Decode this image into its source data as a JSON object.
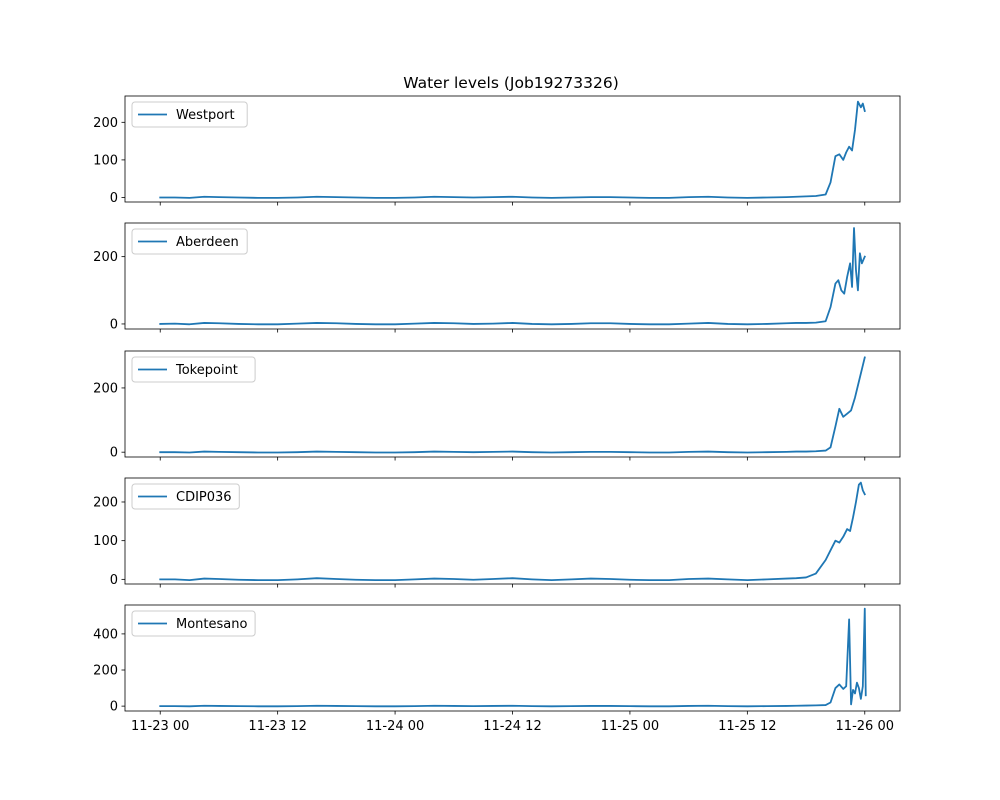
{
  "chart_data": {
    "type": "line",
    "title": "Water levels (Job19273326)",
    "line_color": "#1f77b4",
    "legend_position": "upper-left",
    "shared_x": true,
    "x_tick_labels": [
      "11-23 00",
      "11-23 12",
      "11-24 00",
      "11-24 12",
      "11-25 00",
      "11-25 12",
      "11-26 00"
    ],
    "x_tick_hours": [
      0,
      12,
      24,
      36,
      48,
      60,
      72
    ],
    "xlim_hours": [
      -3.6,
      75.6
    ],
    "panels": [
      {
        "name": "Westport",
        "ylim": [
          -12,
          270
        ],
        "yticks": [
          0,
          100,
          200
        ],
        "hours": [
          0,
          1.5,
          3,
          4.5,
          6,
          8,
          10,
          12,
          14,
          16,
          18,
          20,
          22,
          24,
          26,
          28,
          30,
          32,
          34,
          36,
          38,
          40,
          42,
          44,
          46,
          48,
          50,
          52,
          54,
          56,
          58,
          60,
          62,
          64,
          65,
          66,
          67,
          68,
          68.5,
          69,
          69.4,
          69.8,
          70.1,
          70.4,
          70.7,
          71,
          71.3,
          71.6,
          71.8,
          72
        ],
        "values": [
          0,
          0,
          -1,
          2,
          1,
          0,
          -1,
          -1,
          0,
          2,
          1,
          0,
          -1,
          -1,
          0,
          2,
          1,
          0,
          1,
          2,
          0,
          -1,
          0,
          1,
          1,
          0,
          -1,
          -1,
          1,
          2,
          0,
          -1,
          0,
          1,
          2,
          3,
          4,
          8,
          40,
          110,
          115,
          100,
          120,
          135,
          125,
          180,
          255,
          240,
          250,
          230
        ]
      },
      {
        "name": "Aberdeen",
        "ylim": [
          -15,
          300
        ],
        "yticks": [
          0,
          200
        ],
        "hours": [
          0,
          1.5,
          3,
          4.5,
          6,
          8,
          10,
          12,
          14,
          16,
          18,
          20,
          22,
          24,
          26,
          28,
          30,
          32,
          34,
          36,
          38,
          40,
          42,
          44,
          46,
          48,
          50,
          52,
          54,
          56,
          58,
          60,
          62,
          64,
          65,
          66,
          67,
          68,
          68.5,
          69,
          69.3,
          69.6,
          69.9,
          70.2,
          70.5,
          70.7,
          70.9,
          71.1,
          71.3,
          71.5,
          71.7,
          72
        ],
        "values": [
          0,
          1,
          -1,
          3,
          2,
          0,
          -1,
          -1,
          1,
          3,
          2,
          0,
          -1,
          -1,
          1,
          3,
          2,
          0,
          1,
          3,
          0,
          -1,
          0,
          2,
          2,
          0,
          -1,
          -1,
          1,
          3,
          0,
          -1,
          0,
          2,
          3,
          3,
          4,
          8,
          50,
          120,
          130,
          100,
          90,
          140,
          180,
          110,
          285,
          160,
          100,
          210,
          180,
          200
        ]
      },
      {
        "name": "Tokepoint",
        "ylim": [
          -15,
          315
        ],
        "yticks": [
          0,
          200
        ],
        "hours": [
          0,
          1.5,
          3,
          4.5,
          6,
          8,
          10,
          12,
          14,
          16,
          18,
          20,
          22,
          24,
          26,
          28,
          30,
          32,
          34,
          36,
          38,
          40,
          42,
          44,
          46,
          48,
          50,
          52,
          54,
          56,
          58,
          60,
          62,
          64,
          65,
          66,
          67,
          68,
          68.5,
          69,
          69.4,
          69.8,
          70.2,
          70.6,
          71,
          71.4,
          71.8,
          72
        ],
        "values": [
          0,
          0,
          -1,
          2,
          1,
          0,
          -1,
          -1,
          0,
          2,
          1,
          0,
          -1,
          -1,
          0,
          2,
          1,
          0,
          1,
          2,
          0,
          -1,
          0,
          1,
          1,
          0,
          -1,
          -1,
          1,
          2,
          0,
          -1,
          0,
          1,
          2,
          2,
          3,
          5,
          15,
          80,
          135,
          110,
          120,
          130,
          170,
          220,
          270,
          295
        ]
      },
      {
        "name": "CDIP036",
        "ylim": [
          -12,
          262
        ],
        "yticks": [
          0,
          100,
          200
        ],
        "hours": [
          0,
          1.5,
          3,
          4.5,
          6,
          8,
          10,
          12,
          14,
          16,
          18,
          20,
          22,
          24,
          26,
          28,
          30,
          32,
          34,
          36,
          38,
          40,
          42,
          44,
          46,
          48,
          50,
          52,
          54,
          56,
          58,
          60,
          62,
          64,
          65,
          66,
          67,
          68,
          68.5,
          69,
          69.4,
          69.8,
          70.2,
          70.5,
          70.8,
          71.1,
          71.4,
          71.6,
          71.8,
          72
        ],
        "values": [
          0,
          0,
          -2,
          2,
          1,
          -1,
          -2,
          -2,
          0,
          3,
          1,
          -1,
          -2,
          -2,
          0,
          2,
          1,
          -1,
          1,
          3,
          0,
          -2,
          0,
          2,
          1,
          -1,
          -2,
          -2,
          1,
          2,
          0,
          -2,
          0,
          2,
          3,
          5,
          15,
          50,
          75,
          100,
          95,
          110,
          130,
          125,
          160,
          200,
          245,
          250,
          230,
          220
        ]
      },
      {
        "name": "Montesano",
        "ylim": [
          -27,
          560
        ],
        "yticks": [
          0,
          200,
          400
        ],
        "hours": [
          0,
          1.5,
          3,
          4.5,
          6,
          8,
          10,
          12,
          14,
          16,
          18,
          20,
          22,
          24,
          26,
          28,
          30,
          32,
          34,
          36,
          38,
          40,
          42,
          44,
          46,
          48,
          50,
          52,
          54,
          56,
          58,
          60,
          62,
          64,
          65,
          66,
          67,
          68,
          68.5,
          69,
          69.4,
          69.8,
          70.1,
          70.4,
          70.6,
          70.8,
          71,
          71.2,
          71.4,
          71.6,
          71.8,
          72,
          72.1
        ],
        "values": [
          0,
          0,
          -1,
          2,
          1,
          0,
          -1,
          -1,
          0,
          2,
          1,
          0,
          -1,
          -1,
          0,
          2,
          1,
          0,
          1,
          2,
          0,
          -1,
          0,
          1,
          1,
          0,
          -1,
          -1,
          1,
          2,
          0,
          -1,
          0,
          1,
          2,
          3,
          4,
          6,
          20,
          100,
          120,
          95,
          110,
          480,
          10,
          90,
          70,
          130,
          100,
          40,
          110,
          540,
          60
        ]
      }
    ]
  }
}
